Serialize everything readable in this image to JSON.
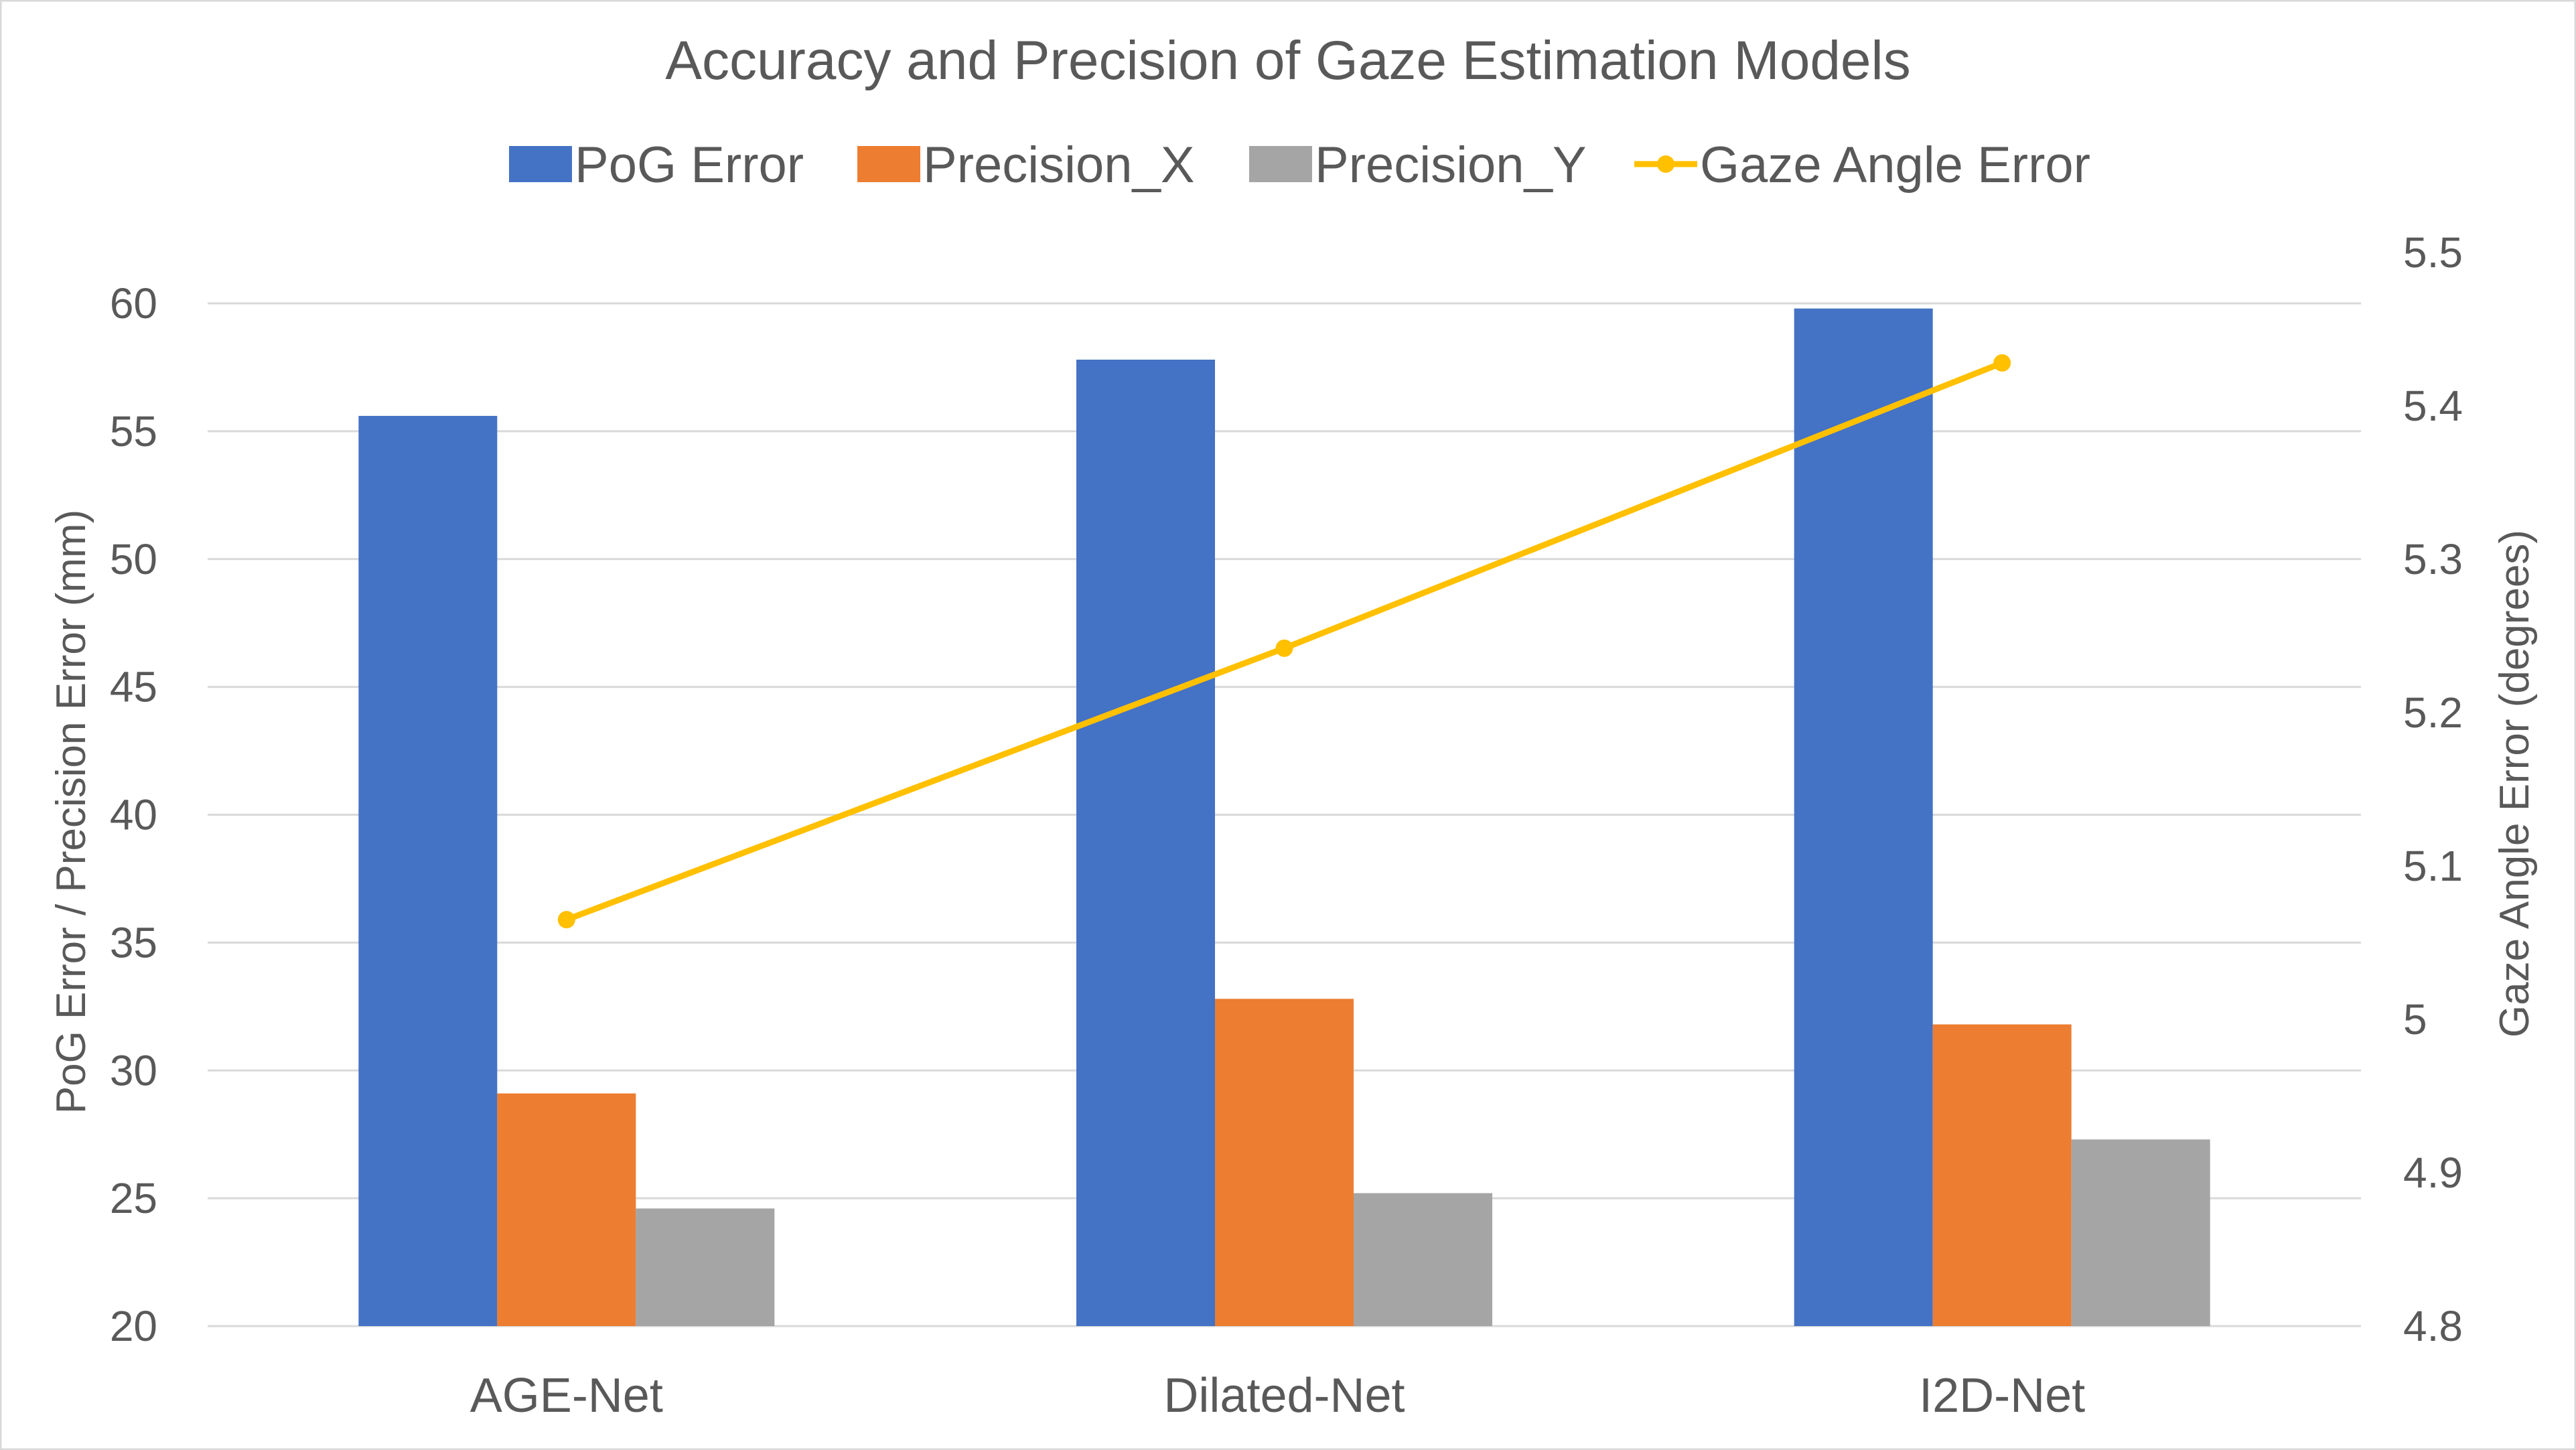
{
  "chart_data": {
    "type": "bar",
    "title": "Accuracy and Precision of Gaze Estimation Models",
    "categories": [
      "AGE-Net",
      "Dilated-Net",
      "I2D-Net"
    ],
    "series": [
      {
        "name": "PoG Error",
        "kind": "bar",
        "axis": "primary",
        "color": "#4472C4",
        "values": [
          55.6,
          57.8,
          59.8
        ]
      },
      {
        "name": "Precision_X",
        "kind": "bar",
        "axis": "primary",
        "color": "#ED7D31",
        "values": [
          29.1,
          32.8,
          31.8
        ]
      },
      {
        "name": "Precision_Y",
        "kind": "bar",
        "axis": "primary",
        "color": "#A5A5A5",
        "values": [
          24.6,
          25.2,
          27.3
        ]
      },
      {
        "name": "Gaze Angle Error",
        "kind": "line",
        "axis": "secondary",
        "color": "#FFC000",
        "values": [
          5.065,
          5.242,
          5.428
        ]
      }
    ],
    "xlabel": "",
    "ylabel": "PoG Error / Precision Error (mm)",
    "y2label": "Gaze Angle Error (degrees)",
    "ylim": [
      20,
      60
    ],
    "yticks": [
      "20",
      "25",
      "30",
      "35",
      "40",
      "45",
      "50",
      "55",
      "60"
    ],
    "y2lim": [
      4.8,
      5.5
    ],
    "y2ticks": [
      "4.8",
      "4.9",
      "5",
      "5.1",
      "5.2",
      "5.3",
      "5.4",
      "5.5"
    ],
    "grid": true,
    "legend_position": "top"
  }
}
